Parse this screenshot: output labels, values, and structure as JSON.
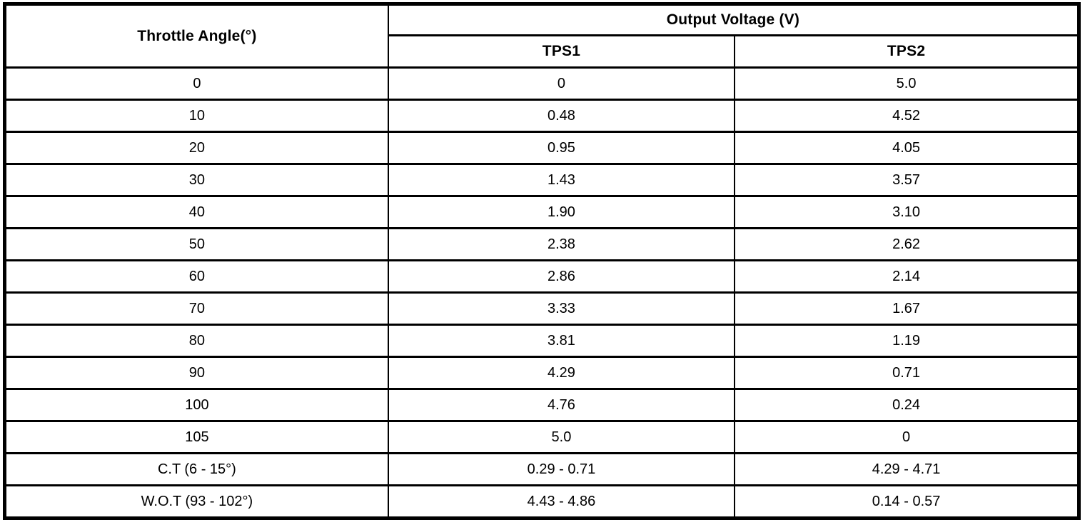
{
  "colors": {
    "border": "#000000",
    "background": "#ffffff",
    "text": "#000000"
  },
  "table": {
    "angle_header": "Throttle Angle(°)",
    "group_header": "Output Voltage (V)",
    "sub_headers": [
      "TPS1",
      "TPS2"
    ],
    "rows": [
      {
        "angle": "0",
        "tps1": "0",
        "tps2": "5.0"
      },
      {
        "angle": "10",
        "tps1": "0.48",
        "tps2": "4.52"
      },
      {
        "angle": "20",
        "tps1": "0.95",
        "tps2": "4.05"
      },
      {
        "angle": "30",
        "tps1": "1.43",
        "tps2": "3.57"
      },
      {
        "angle": "40",
        "tps1": "1.90",
        "tps2": "3.10"
      },
      {
        "angle": "50",
        "tps1": "2.38",
        "tps2": "2.62"
      },
      {
        "angle": "60",
        "tps1": "2.86",
        "tps2": "2.14"
      },
      {
        "angle": "70",
        "tps1": "3.33",
        "tps2": "1.67"
      },
      {
        "angle": "80",
        "tps1": "3.81",
        "tps2": "1.19"
      },
      {
        "angle": "90",
        "tps1": "4.29",
        "tps2": "0.71"
      },
      {
        "angle": "100",
        "tps1": "4.76",
        "tps2": "0.24"
      },
      {
        "angle": "105",
        "tps1": "5.0",
        "tps2": "0"
      },
      {
        "angle": "C.T (6 - 15°)",
        "tps1": "0.29 - 0.71",
        "tps2": "4.29 - 4.71"
      },
      {
        "angle": "W.O.T (93 - 102°)",
        "tps1": "4.43 - 4.86",
        "tps2": "0.14 - 0.57"
      }
    ]
  }
}
